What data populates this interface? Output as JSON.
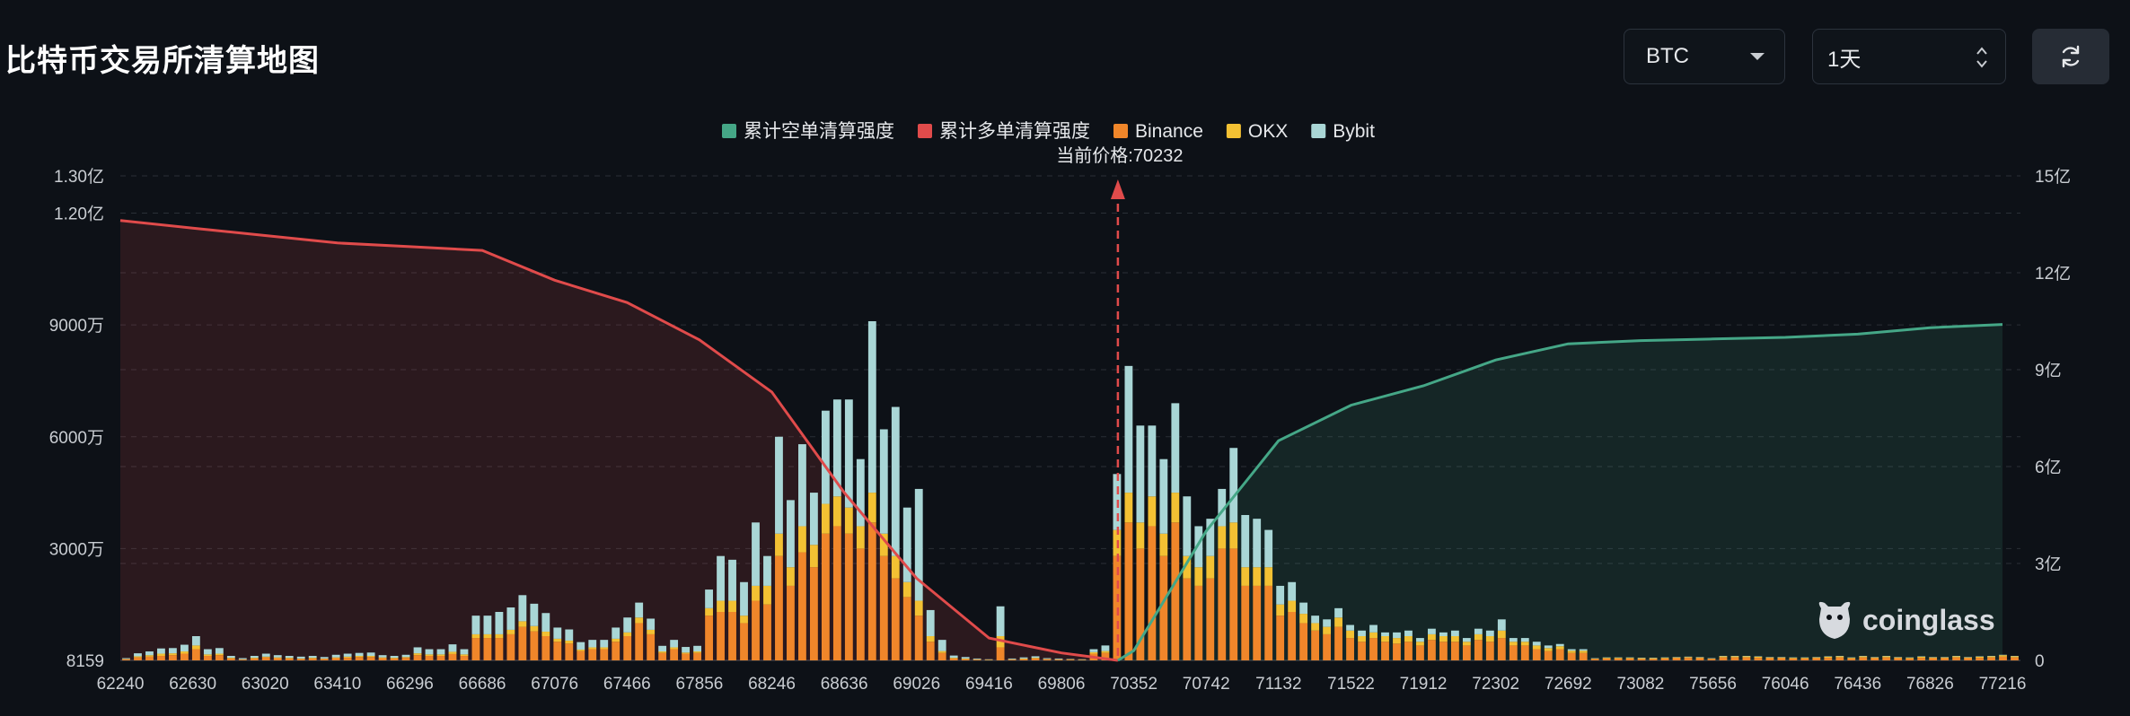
{
  "header": {
    "title": "比特币交易所清算地图",
    "symbol_value": "BTC",
    "range_value": "1天"
  },
  "watermark": "coinglass",
  "colors": {
    "short": "#45a787",
    "long": "#e04b4b",
    "binance": "#f0862a",
    "okx": "#f3c133",
    "bybit": "#a9d6d6",
    "background": "#0d1117"
  },
  "icons": {
    "refresh": "refresh-icon",
    "caret": "chevron-down-icon",
    "spinner": "updown-icon"
  },
  "chart_data": {
    "type": "bar",
    "title": "",
    "current_price_label": "当前价格:70232",
    "current_price": 70232,
    "legend_position": "top-center",
    "legend": [
      {
        "name": "累计空单清算强度",
        "color": "#45a787"
      },
      {
        "name": "累计多单清算强度",
        "color": "#e04b4b"
      },
      {
        "name": "Binance",
        "color": "#f0862a"
      },
      {
        "name": "OKX",
        "color": "#f3c133"
      },
      {
        "name": "Bybit",
        "color": "#a9d6d6"
      }
    ],
    "x_tick_labels": [
      "62240",
      "62630",
      "63020",
      "63410",
      "66296",
      "66686",
      "67076",
      "67466",
      "67856",
      "68246",
      "68636",
      "69026",
      "69416",
      "69806",
      "70352",
      "70742",
      "71132",
      "71522",
      "71912",
      "72302",
      "72692",
      "73082",
      "75656",
      "76046",
      "76436",
      "76826",
      "77216"
    ],
    "left_axis": {
      "unit_labels": [
        "8159",
        "3000万",
        "6000万",
        "9000万",
        "1.20亿",
        "1.30亿"
      ],
      "ticks": [
        8159,
        30000000,
        60000000,
        90000000,
        120000000,
        130000000
      ],
      "range": [
        0,
        130000000
      ]
    },
    "right_axis": {
      "unit_labels": [
        "0",
        "3亿",
        "6亿",
        "9亿",
        "12亿",
        "15亿"
      ],
      "ticks": [
        0,
        300000000,
        600000000,
        900000000,
        1200000000,
        1500000000
      ],
      "range": [
        0,
        1500000000
      ]
    },
    "grid": true,
    "bar_unit": "millions (left axis)",
    "series": [
      {
        "name": "Binance",
        "values": [
          0.3,
          0.8,
          1.0,
          1.2,
          1.4,
          1.8,
          3.0,
          1.2,
          1.4,
          0.5,
          0.2,
          0.5,
          0.8,
          0.6,
          0.5,
          0.4,
          0.5,
          0.4,
          0.6,
          0.7,
          0.9,
          0.9,
          0.6,
          0.5,
          0.7,
          1.4,
          1.2,
          1.2,
          1.7,
          1.2,
          6.0,
          6.0,
          6.0,
          7.0,
          9.0,
          7.8,
          6.5,
          5.0,
          4.5,
          2.5,
          3.0,
          3.0,
          5.0,
          6.5,
          10.0,
          7.0,
          2.0,
          3.0,
          1.8,
          2.0,
          12.0,
          13.0,
          13.0,
          10.0,
          16.0,
          15.0,
          28.0,
          20.0,
          29.0,
          25.0,
          34.0,
          36.0,
          34.0,
          30.0,
          37.0,
          28.0,
          22.0,
          17.0,
          12.0,
          5.0,
          2.0,
          0.5,
          0.3,
          0.2,
          0.1,
          3.5,
          0.2,
          0.3,
          0.5,
          0.3,
          0.2,
          0.2,
          0.1,
          1.8,
          2.0,
          28.0,
          37.0,
          30.0,
          36.0,
          28.0,
          37.0,
          22.0,
          20.0,
          22.0,
          30.0,
          30.0,
          20.0,
          20.0,
          20.0,
          12.0,
          13.0,
          10.0,
          8.0,
          7.0,
          9.0,
          6.0,
          5.0,
          6.0,
          5.0,
          4.5,
          5.0,
          4.0,
          5.5,
          5.0,
          5.0,
          4.0,
          5.5,
          5.0,
          6.0,
          4.0,
          4.0,
          3.0,
          2.5,
          3.0,
          2.0,
          2.0,
          0.4,
          0.5,
          0.5,
          0.5,
          0.4,
          0.4,
          0.5,
          0.6,
          0.7,
          0.6,
          0.4,
          0.8,
          0.8,
          0.8,
          0.7,
          0.6,
          0.6,
          0.5,
          0.5,
          0.6,
          0.7,
          0.8,
          0.5,
          0.8,
          0.6,
          0.8,
          0.6,
          0.5,
          0.7,
          0.6,
          0.6,
          0.8,
          0.6,
          0.7,
          0.8,
          1.0,
          0.8
        ]
      },
      {
        "name": "OKX",
        "values": [
          0.1,
          0.3,
          0.4,
          0.6,
          0.5,
          0.6,
          1.0,
          0.4,
          0.4,
          0.2,
          0.1,
          0.2,
          0.2,
          0.2,
          0.2,
          0.1,
          0.2,
          0.1,
          0.2,
          0.3,
          0.3,
          0.3,
          0.2,
          0.2,
          0.2,
          0.5,
          0.4,
          0.4,
          0.6,
          0.4,
          1.0,
          1.0,
          1.0,
          1.2,
          1.5,
          1.4,
          1.2,
          0.8,
          0.8,
          0.4,
          0.5,
          0.5,
          0.8,
          1.0,
          1.5,
          1.2,
          0.4,
          0.5,
          0.3,
          0.4,
          2.0,
          3.0,
          3.0,
          2.0,
          4.0,
          5.0,
          6.0,
          5.0,
          7.0,
          6.0,
          8.0,
          8.0,
          7.0,
          6.0,
          8.0,
          6.0,
          6.0,
          4.0,
          4.0,
          1.5,
          0.5,
          0.2,
          0.2,
          0.1,
          0.1,
          3.0,
          0.1,
          0.2,
          0.2,
          0.1,
          0.1,
          0.1,
          0.1,
          0.4,
          0.5,
          7.0,
          8.0,
          7.0,
          8.0,
          6.0,
          8.0,
          6.0,
          5.0,
          6.0,
          6.0,
          7.0,
          5.0,
          5.0,
          5.0,
          3.0,
          3.0,
          2.5,
          2.0,
          2.0,
          2.5,
          2.0,
          1.5,
          1.5,
          1.5,
          1.5,
          1.5,
          1.0,
          1.5,
          1.5,
          1.5,
          1.0,
          1.5,
          1.5,
          2.0,
          1.0,
          1.0,
          1.0,
          0.8,
          0.8,
          0.6,
          0.6,
          0.1,
          0.2,
          0.2,
          0.2,
          0.2,
          0.2,
          0.2,
          0.2,
          0.2,
          0.2,
          0.1,
          0.3,
          0.3,
          0.3,
          0.3,
          0.2,
          0.2,
          0.2,
          0.2,
          0.2,
          0.3,
          0.3,
          0.2,
          0.3,
          0.2,
          0.3,
          0.2,
          0.2,
          0.3,
          0.2,
          0.2,
          0.3,
          0.2,
          0.3,
          0.3,
          0.4,
          0.3
        ]
      },
      {
        "name": "Bybit",
        "values": [
          0.2,
          0.8,
          1.0,
          1.4,
          1.4,
          1.8,
          2.5,
          1.4,
          1.5,
          0.5,
          0.3,
          0.5,
          0.8,
          0.6,
          0.5,
          0.5,
          0.5,
          0.4,
          0.7,
          0.8,
          0.8,
          0.9,
          0.6,
          0.5,
          0.6,
          1.6,
          1.4,
          1.4,
          2.0,
          1.4,
          5.0,
          5.0,
          6.0,
          6.0,
          7.0,
          6.0,
          5.0,
          3.0,
          3.0,
          2.0,
          2.0,
          2.0,
          3.0,
          4.0,
          4.0,
          3.0,
          1.5,
          2.0,
          1.5,
          1.5,
          5.0,
          12.0,
          11.0,
          9.0,
          17.0,
          8.0,
          26.0,
          18.0,
          22.0,
          14.0,
          25.0,
          26.0,
          29.0,
          18.0,
          46.0,
          28.0,
          40.0,
          20.0,
          30.0,
          7.0,
          3.0,
          0.6,
          0.4,
          0.2,
          0.1,
          8.0,
          0.2,
          0.3,
          0.4,
          0.2,
          0.2,
          0.1,
          0.1,
          0.8,
          1.5,
          15.0,
          34.0,
          26.0,
          19.0,
          20.0,
          24.0,
          16.0,
          11.0,
          10.0,
          10.0,
          20.0,
          14.0,
          13.0,
          10.0,
          5.0,
          5.0,
          3.0,
          2.0,
          2.0,
          2.5,
          1.5,
          1.5,
          2.0,
          1.0,
          1.5,
          1.5,
          1.0,
          1.5,
          1.0,
          1.5,
          1.0,
          1.5,
          1.5,
          3.0,
          1.0,
          1.0,
          1.0,
          0.7,
          0.6,
          0.4,
          0.4,
          0.1,
          0.1,
          0.1,
          0.1,
          0.1,
          0.1,
          0.1,
          0.1,
          0.1,
          0.1,
          0.1,
          0.1,
          0.1,
          0.1,
          0.1,
          0.1,
          0.1,
          0.1,
          0.1,
          0.1,
          0.1,
          0.1,
          0.1,
          0.1,
          0.1,
          0.1,
          0.1,
          0.1,
          0.1,
          0.1,
          0.1,
          0.1,
          0.1,
          0.1,
          0.1,
          0.1,
          0.1
        ]
      },
      {
        "name": "累计多单清算强度",
        "axis": "left",
        "unit": "亿",
        "x": [
          62240,
          62630,
          63020,
          63410,
          66296,
          66686,
          67076,
          67466,
          67856,
          68246,
          68636,
          69026,
          69416,
          69806,
          70232
        ],
        "values": [
          1.18,
          1.16,
          1.14,
          1.12,
          1.11,
          1.1,
          1.02,
          0.96,
          0.86,
          0.72,
          0.45,
          0.22,
          0.06,
          0.02,
          0.0
        ]
      },
      {
        "name": "累计空单清算强度",
        "axis": "right",
        "unit": "亿",
        "x": [
          70232,
          70352,
          70742,
          71132,
          71522,
          71912,
          72302,
          72692,
          73082,
          75656,
          76046,
          76436,
          76826,
          77216
        ],
        "values": [
          0.0,
          0.3,
          4.0,
          6.8,
          7.9,
          8.5,
          9.3,
          9.8,
          9.9,
          9.95,
          10.0,
          10.1,
          10.3,
          10.4
        ]
      }
    ]
  }
}
